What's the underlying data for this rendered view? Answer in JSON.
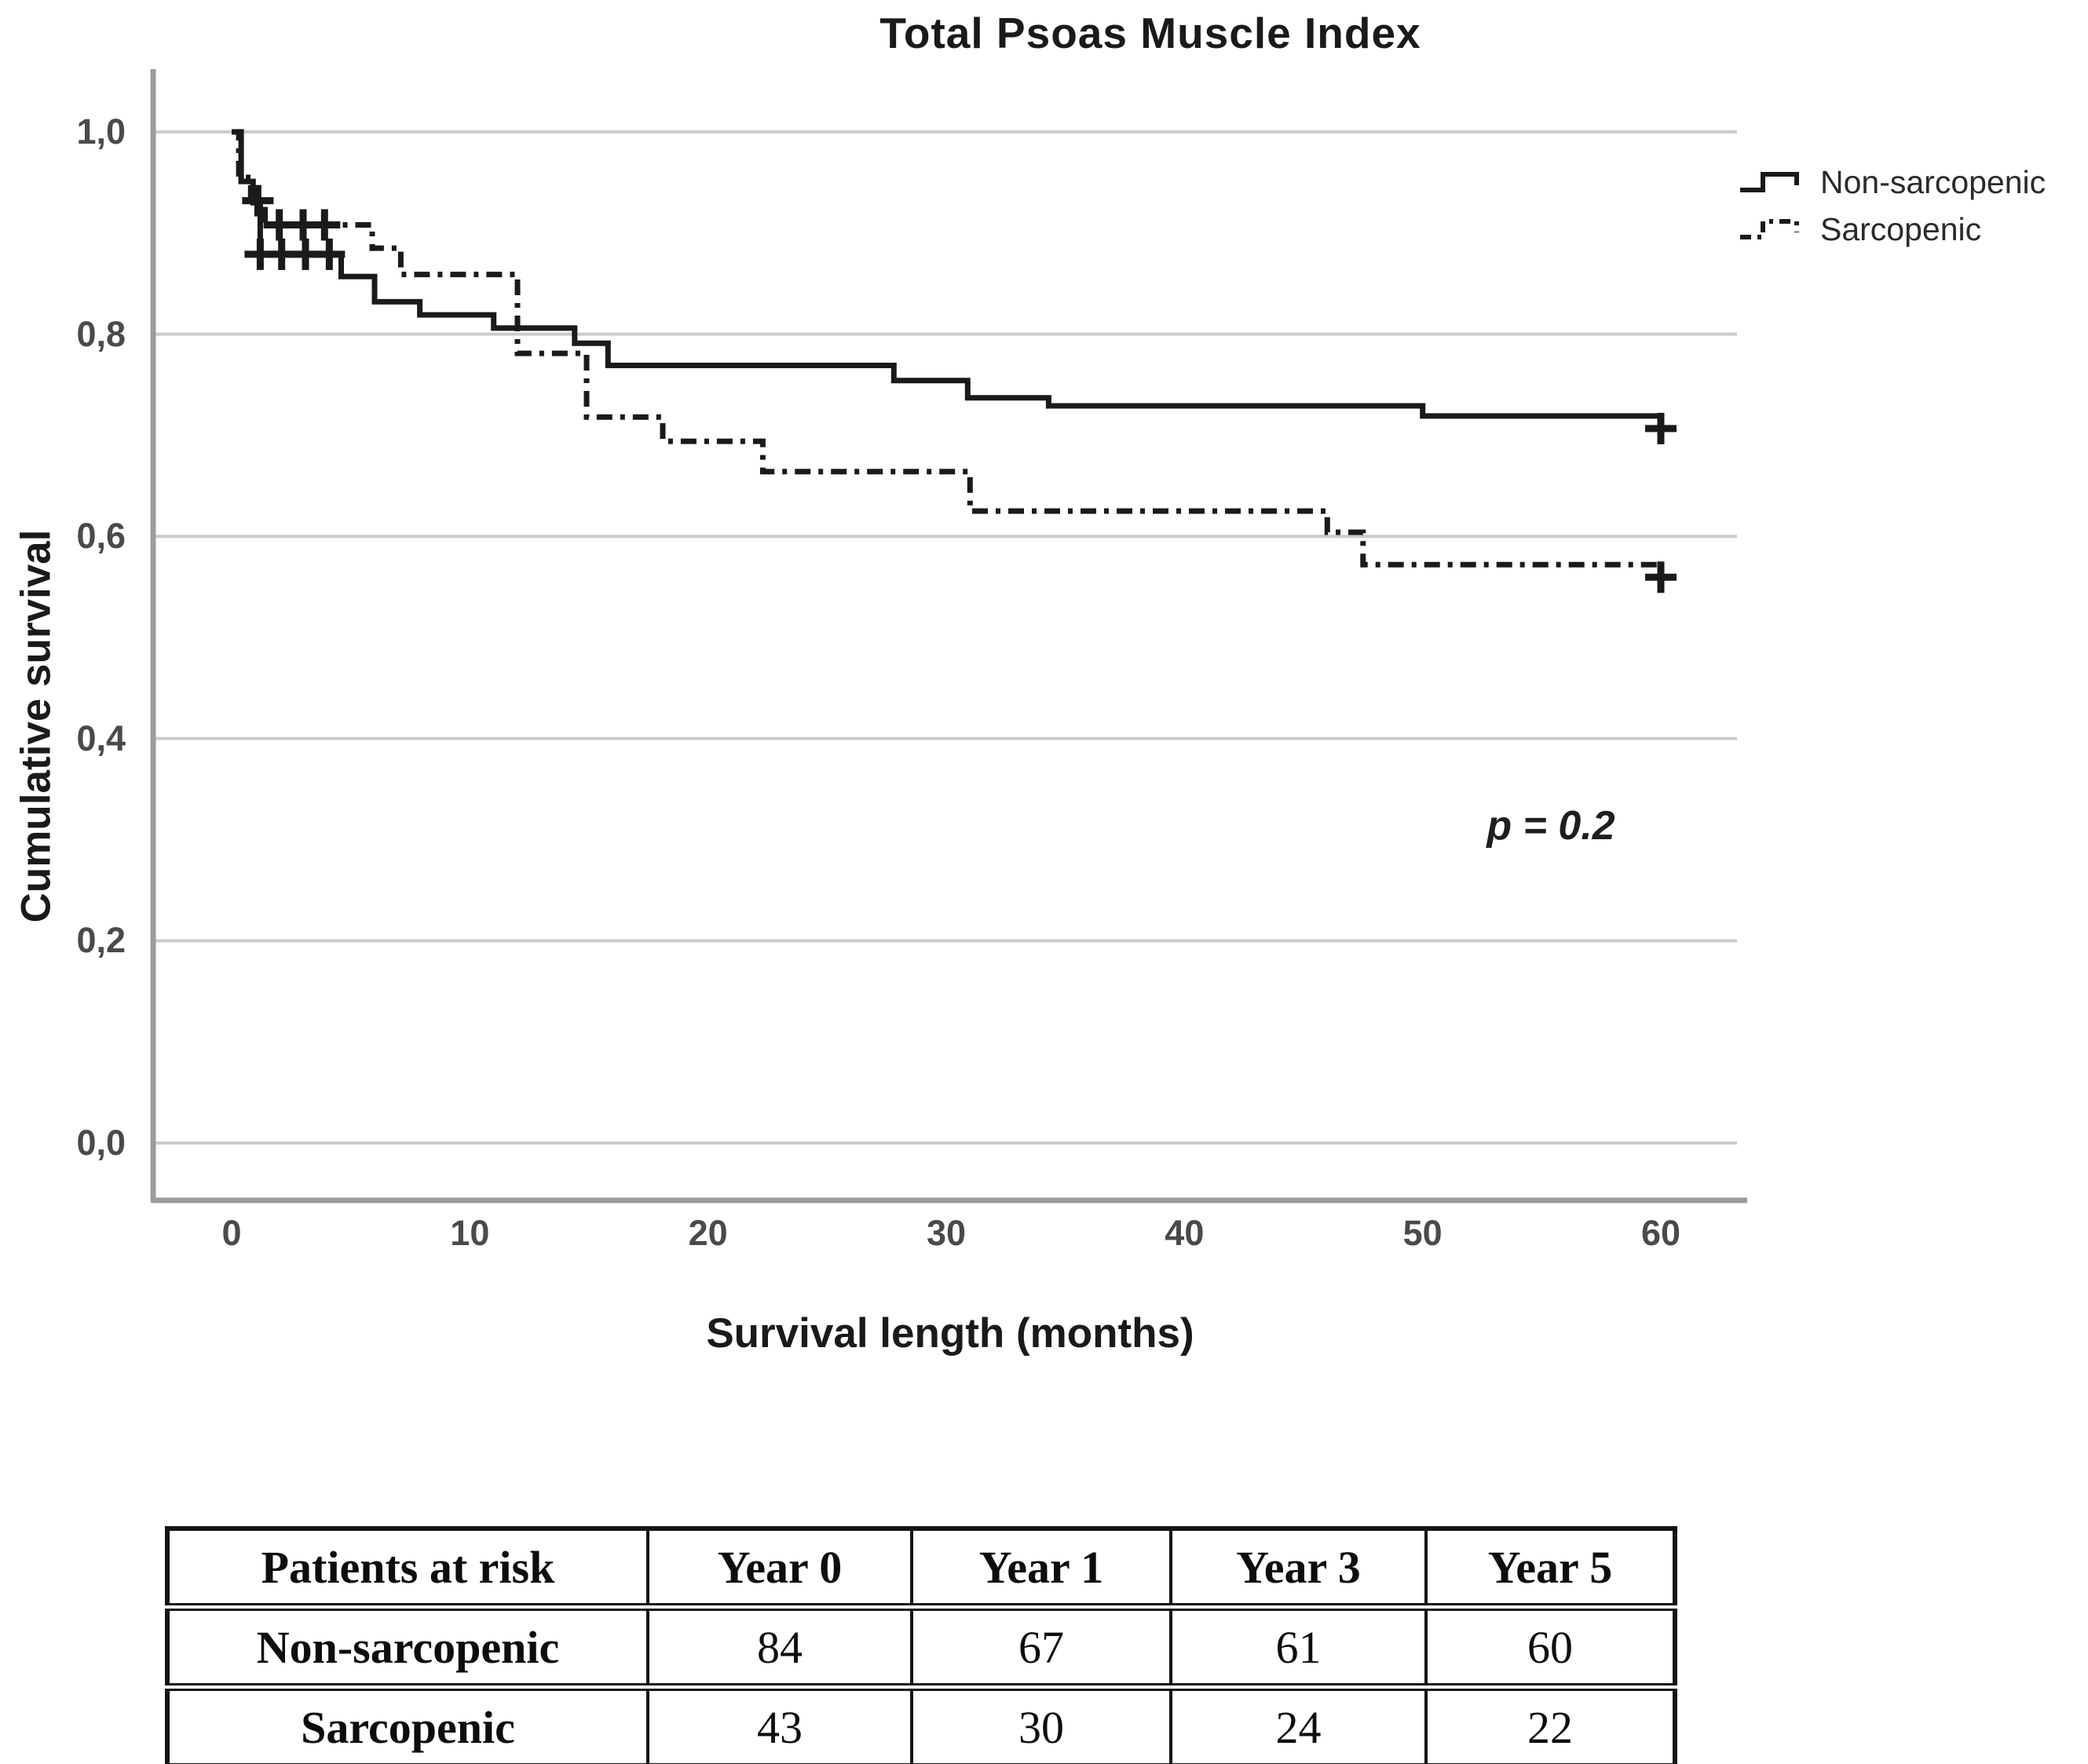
{
  "title": "Total Psoas Muscle Index",
  "axes": {
    "y_label": "Cumulative survival",
    "x_label": "Survival length (months)",
    "y_tick_labels": [
      "1,0",
      "0,8",
      "0,6",
      "0,4",
      "0,2",
      "0,0"
    ],
    "y_tick_values": [
      1.0,
      0.8,
      0.6,
      0.4,
      0.2,
      0.0
    ],
    "x_tick_labels": [
      "0",
      "10",
      "20",
      "30",
      "40",
      "50",
      "60"
    ],
    "x_tick_values": [
      0,
      10,
      20,
      30,
      40,
      50,
      60
    ]
  },
  "annotation": {
    "text": "p = 0.2"
  },
  "legend": {
    "items": [
      {
        "label": "Non-sarcopenic",
        "line_style": "solid"
      },
      {
        "label": "Sarcopenic",
        "line_style": "dash-dot"
      }
    ]
  },
  "colors": {
    "curve": "#1a1a1a",
    "gridline": "#cbcbcb",
    "axis_frame": "#9c9c9c",
    "tick_text": "#4a4a4a",
    "table_border": "#141414"
  },
  "chart_data": {
    "type": "line",
    "subtype": "kaplan-meier-step",
    "title": "Total Psoas Muscle Index",
    "xlabel": "Survival length (months)",
    "ylabel": "Cumulative survival",
    "xlim": [
      0,
      60
    ],
    "ylim": [
      0.0,
      1.0
    ],
    "x_ticks": [
      0,
      10,
      20,
      30,
      40,
      50,
      60
    ],
    "y_ticks": [
      0.0,
      0.2,
      0.4,
      0.6,
      0.8,
      1.0
    ],
    "grid": true,
    "legend_position": "right",
    "annotation": {
      "text": "p = 0.2",
      "x_months": 55,
      "y_survival": 0.31
    },
    "series": [
      {
        "name": "Non-sarcopenic",
        "line_style": "solid",
        "color": "#1a1a1a",
        "steps": [
          [
            0,
            1.0
          ],
          [
            0.4,
            0.951
          ],
          [
            0.9,
            0.93
          ],
          [
            1.2,
            0.879
          ],
          [
            4.6,
            0.857
          ],
          [
            6.0,
            0.832
          ],
          [
            7.9,
            0.819
          ],
          [
            11.0,
            0.806
          ],
          [
            14.4,
            0.791
          ],
          [
            15.8,
            0.769
          ],
          [
            27.8,
            0.754
          ],
          [
            30.9,
            0.737
          ],
          [
            34.3,
            0.729
          ],
          [
            50.0,
            0.719
          ]
        ],
        "end_time": 60,
        "censor_marks": [
          [
            1.2,
            0.879
          ],
          [
            2.1,
            0.879
          ],
          [
            3.1,
            0.879
          ],
          [
            4.1,
            0.879
          ],
          [
            60,
            0.719
          ]
        ]
      },
      {
        "name": "Sarcopenic",
        "line_style": "dash-dot",
        "color": "#1a1a1a",
        "steps": [
          [
            0,
            1.0
          ],
          [
            0.3,
            0.955
          ],
          [
            0.8,
            0.932
          ],
          [
            1.4,
            0.908
          ],
          [
            5.9,
            0.885
          ],
          [
            7.1,
            0.859
          ],
          [
            12.0,
            0.781
          ],
          [
            14.9,
            0.718
          ],
          [
            18.1,
            0.694
          ],
          [
            22.3,
            0.664
          ],
          [
            31.0,
            0.625
          ],
          [
            46.0,
            0.604
          ],
          [
            47.5,
            0.572
          ]
        ],
        "end_time": 60,
        "censor_marks": [
          [
            1.1,
            0.932
          ],
          [
            2.0,
            0.908
          ],
          [
            3.0,
            0.908
          ],
          [
            3.9,
            0.908
          ],
          [
            60,
            0.572
          ]
        ]
      }
    ]
  },
  "risk_table": {
    "headers": [
      "Patients at risk",
      "Year 0",
      "Year 1",
      "Year 3",
      "Year 5"
    ],
    "rows": [
      {
        "label": "Non-sarcopenic",
        "values": [
          "84",
          "67",
          "61",
          "60"
        ]
      },
      {
        "label": "Sarcopenic",
        "values": [
          "43",
          "30",
          "24",
          "22"
        ]
      }
    ]
  }
}
